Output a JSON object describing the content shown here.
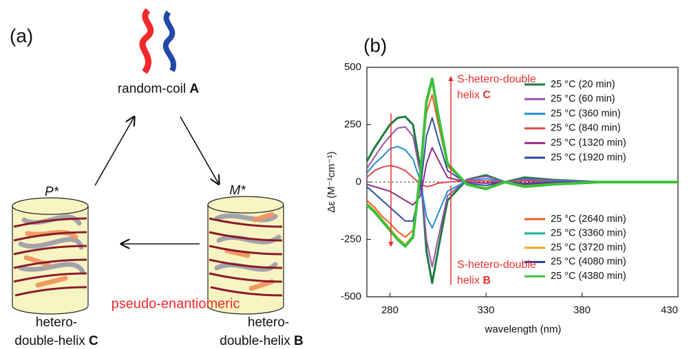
{
  "panel_a": {
    "label": "(a)",
    "top": {
      "text": "random-coil",
      "bold": "A"
    },
    "left_sign": "P*",
    "right_sign": "M*",
    "center_text": "pseudo-enantiomeric",
    "left_caption": {
      "line1": "hetero-",
      "line2": "double-helix",
      "bold": "C"
    },
    "right_caption": {
      "line1": "hetero-",
      "line2": "double-helix",
      "bold": "B"
    }
  },
  "chart_data": {
    "type": "line",
    "panel_label": "(b)",
    "x_label": "wavelength (nm)",
    "y_label": "Δε (M⁻¹cm⁻¹)",
    "xlim": [
      268,
      430
    ],
    "xticks": [
      280,
      330,
      380,
      430
    ],
    "ylim": [
      -500,
      500
    ],
    "yticks": [
      -500,
      -250,
      0,
      250,
      500
    ],
    "annotations": [
      {
        "line1": "S-hetero-double",
        "line2": "helix",
        "bold": "C"
      },
      {
        "line1": "S-hetero-double",
        "line2": "helix",
        "bold": "B"
      }
    ],
    "x": [
      268,
      272,
      276,
      280,
      284,
      288,
      292,
      296,
      299,
      302,
      305,
      310,
      320,
      330,
      340,
      350,
      365,
      390,
      430
    ],
    "series": [
      {
        "name": "25 °C (20 min)",
        "color": "#1a7a3a",
        "values": [
          90,
          150,
          200,
          250,
          280,
          285,
          250,
          50,
          -300,
          -440,
          -300,
          -80,
          10,
          30,
          0,
          20,
          10,
          0,
          0
        ]
      },
      {
        "name": "25 °C (60 min)",
        "color": "#9b4fb0",
        "values": [
          60,
          110,
          160,
          200,
          235,
          240,
          200,
          30,
          -250,
          -370,
          -250,
          -60,
          10,
          25,
          0,
          15,
          8,
          0,
          0
        ]
      },
      {
        "name": "25 °C (360 min)",
        "color": "#1e8fd0",
        "values": [
          40,
          80,
          110,
          145,
          155,
          140,
          100,
          0,
          -150,
          -200,
          -140,
          -40,
          5,
          15,
          0,
          10,
          5,
          0,
          0
        ]
      },
      {
        "name": "25 °C (840 min)",
        "color": "#e0474c",
        "values": [
          20,
          50,
          65,
          72,
          65,
          50,
          20,
          -10,
          -20,
          -15,
          -5,
          0,
          5,
          5,
          0,
          5,
          0,
          0,
          0
        ]
      },
      {
        "name": "25 °C (1320 min)",
        "color": "#8e2a8a",
        "values": [
          -10,
          -20,
          -30,
          -40,
          -60,
          -80,
          -100,
          -60,
          80,
          150,
          100,
          20,
          0,
          -5,
          0,
          -5,
          0,
          0,
          0
        ]
      },
      {
        "name": "25 °C (1920 min)",
        "color": "#2c4fa0",
        "values": [
          -20,
          -50,
          -80,
          -110,
          -140,
          -170,
          -170,
          -20,
          200,
          280,
          190,
          50,
          -5,
          -15,
          0,
          -10,
          -5,
          0,
          0
        ]
      },
      {
        "name": "25 °C (2640 min)",
        "color": "#f05a28",
        "values": [
          -80,
          -110,
          -150,
          -180,
          -215,
          -240,
          -210,
          40,
          300,
          380,
          260,
          70,
          -10,
          -25,
          0,
          -15,
          -8,
          0,
          0
        ]
      },
      {
        "name": "25 °C (3360 min)",
        "color": "#1ab394",
        "values": [
          -95,
          -125,
          -165,
          -205,
          -245,
          -275,
          -235,
          48,
          340,
          440,
          295,
          78,
          -10,
          -29,
          0,
          -19,
          -10,
          0,
          0
        ]
      },
      {
        "name": "25 °C (3720 min)",
        "color": "#f5a623",
        "values": [
          -92,
          -122,
          -162,
          -202,
          -242,
          -272,
          -232,
          47,
          335,
          435,
          290,
          77,
          -10,
          -28,
          0,
          -18,
          -10,
          0,
          0
        ]
      },
      {
        "name": "25 °C (4080 min)",
        "color": "#2e3e8f",
        "values": [
          -97,
          -127,
          -167,
          -207,
          -247,
          -277,
          -237,
          49,
          345,
          445,
          297,
          79,
          -10,
          -29,
          0,
          -19,
          -10,
          0,
          0
        ]
      },
      {
        "name": "25 °C (4380 min)",
        "color": "#3cc23c",
        "values": [
          -100,
          -130,
          -170,
          -210,
          -250,
          -280,
          -240,
          50,
          350,
          450,
          300,
          80,
          -10,
          -30,
          0,
          -20,
          -10,
          0,
          0
        ]
      }
    ]
  }
}
